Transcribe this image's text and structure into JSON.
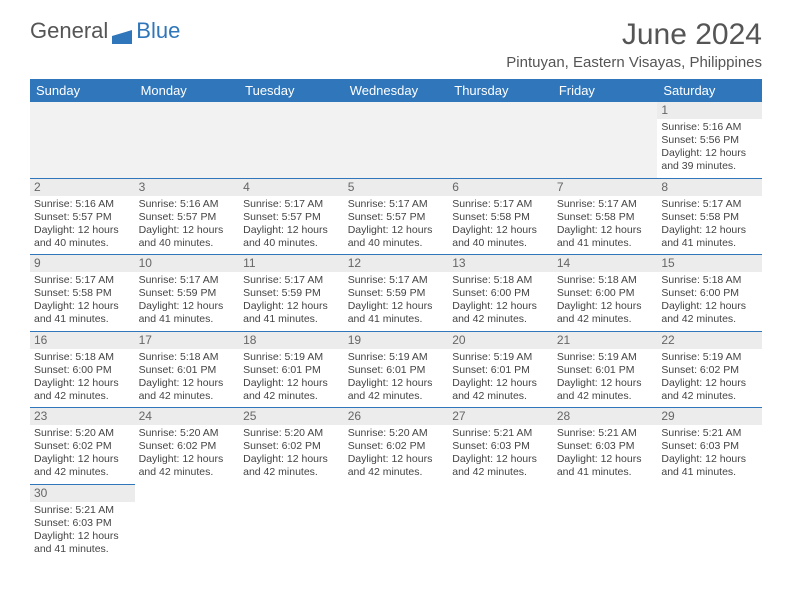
{
  "logo": {
    "textGray": "General",
    "textBlue": "Blue"
  },
  "title": "June 2024",
  "location": "Pintuyan, Eastern Visayas, Philippines",
  "colors": {
    "accent": "#2f76bb",
    "headerBg": "#2f76bb",
    "daynumBg": "#ececec",
    "emptyBg": "#f2f2f2",
    "text": "#444"
  },
  "weekdays": [
    "Sunday",
    "Monday",
    "Tuesday",
    "Wednesday",
    "Thursday",
    "Friday",
    "Saturday"
  ],
  "days": {
    "1": {
      "sr": "5:16 AM",
      "ss": "5:56 PM",
      "dl": "12 hours and 39 minutes."
    },
    "2": {
      "sr": "5:16 AM",
      "ss": "5:57 PM",
      "dl": "12 hours and 40 minutes."
    },
    "3": {
      "sr": "5:16 AM",
      "ss": "5:57 PM",
      "dl": "12 hours and 40 minutes."
    },
    "4": {
      "sr": "5:17 AM",
      "ss": "5:57 PM",
      "dl": "12 hours and 40 minutes."
    },
    "5": {
      "sr": "5:17 AM",
      "ss": "5:57 PM",
      "dl": "12 hours and 40 minutes."
    },
    "6": {
      "sr": "5:17 AM",
      "ss": "5:58 PM",
      "dl": "12 hours and 40 minutes."
    },
    "7": {
      "sr": "5:17 AM",
      "ss": "5:58 PM",
      "dl": "12 hours and 41 minutes."
    },
    "8": {
      "sr": "5:17 AM",
      "ss": "5:58 PM",
      "dl": "12 hours and 41 minutes."
    },
    "9": {
      "sr": "5:17 AM",
      "ss": "5:58 PM",
      "dl": "12 hours and 41 minutes."
    },
    "10": {
      "sr": "5:17 AM",
      "ss": "5:59 PM",
      "dl": "12 hours and 41 minutes."
    },
    "11": {
      "sr": "5:17 AM",
      "ss": "5:59 PM",
      "dl": "12 hours and 41 minutes."
    },
    "12": {
      "sr": "5:17 AM",
      "ss": "5:59 PM",
      "dl": "12 hours and 41 minutes."
    },
    "13": {
      "sr": "5:18 AM",
      "ss": "6:00 PM",
      "dl": "12 hours and 42 minutes."
    },
    "14": {
      "sr": "5:18 AM",
      "ss": "6:00 PM",
      "dl": "12 hours and 42 minutes."
    },
    "15": {
      "sr": "5:18 AM",
      "ss": "6:00 PM",
      "dl": "12 hours and 42 minutes."
    },
    "16": {
      "sr": "5:18 AM",
      "ss": "6:00 PM",
      "dl": "12 hours and 42 minutes."
    },
    "17": {
      "sr": "5:18 AM",
      "ss": "6:01 PM",
      "dl": "12 hours and 42 minutes."
    },
    "18": {
      "sr": "5:19 AM",
      "ss": "6:01 PM",
      "dl": "12 hours and 42 minutes."
    },
    "19": {
      "sr": "5:19 AM",
      "ss": "6:01 PM",
      "dl": "12 hours and 42 minutes."
    },
    "20": {
      "sr": "5:19 AM",
      "ss": "6:01 PM",
      "dl": "12 hours and 42 minutes."
    },
    "21": {
      "sr": "5:19 AM",
      "ss": "6:01 PM",
      "dl": "12 hours and 42 minutes."
    },
    "22": {
      "sr": "5:19 AM",
      "ss": "6:02 PM",
      "dl": "12 hours and 42 minutes."
    },
    "23": {
      "sr": "5:20 AM",
      "ss": "6:02 PM",
      "dl": "12 hours and 42 minutes."
    },
    "24": {
      "sr": "5:20 AM",
      "ss": "6:02 PM",
      "dl": "12 hours and 42 minutes."
    },
    "25": {
      "sr": "5:20 AM",
      "ss": "6:02 PM",
      "dl": "12 hours and 42 minutes."
    },
    "26": {
      "sr": "5:20 AM",
      "ss": "6:02 PM",
      "dl": "12 hours and 42 minutes."
    },
    "27": {
      "sr": "5:21 AM",
      "ss": "6:03 PM",
      "dl": "12 hours and 42 minutes."
    },
    "28": {
      "sr": "5:21 AM",
      "ss": "6:03 PM",
      "dl": "12 hours and 41 minutes."
    },
    "29": {
      "sr": "5:21 AM",
      "ss": "6:03 PM",
      "dl": "12 hours and 41 minutes."
    },
    "30": {
      "sr": "5:21 AM",
      "ss": "6:03 PM",
      "dl": "12 hours and 41 minutes."
    }
  },
  "labels": {
    "sunrise": "Sunrise:",
    "sunset": "Sunset:",
    "daylight": "Daylight:"
  },
  "layout": {
    "firstDayColumn": 6,
    "numDays": 30
  }
}
